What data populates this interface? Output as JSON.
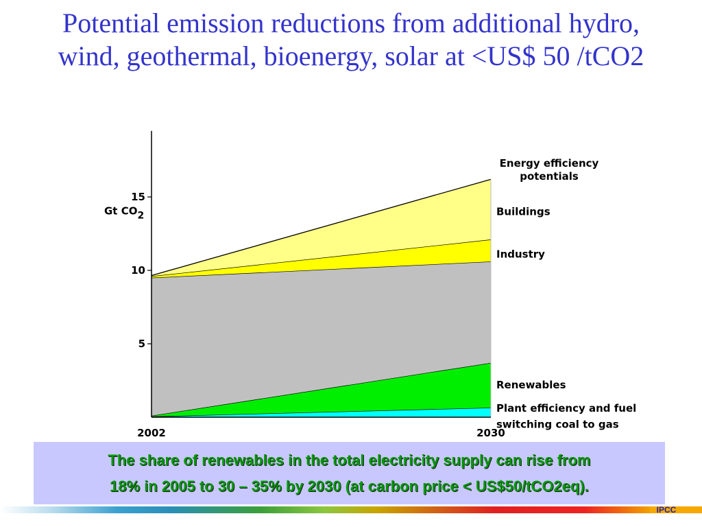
{
  "title": {
    "line1": "Potential emission reductions from additional hydro,",
    "line2": "wind, geothermal, bioenergy, solar at <US$ 50 /tCO2"
  },
  "caption": {
    "line1": "The share of renewables in the total electricity supply can rise from",
    "line2": "18% in 2005 to 30 – 35% by 2030 (at carbon price < US$50/tCO2eq)."
  },
  "footer": {
    "label": "IPCC"
  },
  "chart_data": {
    "type": "area",
    "x": [
      2002,
      2030
    ],
    "x_tick_labels": [
      "2002",
      "2030"
    ],
    "ylabel": "Gt CO",
    "ylabel_sub": "2",
    "ylim": [
      0,
      19.5
    ],
    "y_ticks": [
      5,
      10,
      15
    ],
    "stacked_areas": [
      {
        "name": "Plant efficiency and fuel switching coal to gas",
        "bottom": [
          0,
          0
        ],
        "top": [
          0.05,
          0.65
        ],
        "color": "#00ffff"
      },
      {
        "name": "Renewables",
        "bottom": [
          0.05,
          0.65
        ],
        "top": [
          0.1,
          3.7
        ],
        "color": "#00ee00"
      },
      {
        "name": "",
        "bottom": [
          0.1,
          3.7
        ],
        "top": [
          9.5,
          10.6
        ],
        "color": "#c0c0c0"
      },
      {
        "name": "Industry",
        "bottom": [
          9.5,
          10.6
        ],
        "top": [
          9.6,
          12.1
        ],
        "color": "#ffff00"
      },
      {
        "name": "Buildings",
        "bottom": [
          9.6,
          12.1
        ],
        "top": [
          9.65,
          16.2
        ],
        "color": "#ffff88"
      }
    ],
    "right_labels": [
      {
        "lines": [
          "Energy efficiency",
          "potentials"
        ],
        "y": [
          17.3,
          16.4
        ],
        "anchor": "middle"
      },
      {
        "lines": [
          "Buildings"
        ],
        "y": [
          14.0
        ],
        "anchor": "start"
      },
      {
        "lines": [
          "Industry"
        ],
        "y": [
          11.1
        ],
        "anchor": "start"
      },
      {
        "lines": [
          "Renewables"
        ],
        "y": [
          2.2
        ],
        "anchor": "start"
      },
      {
        "lines": [
          "Plant efficiency and fuel",
          "switching coal to gas"
        ],
        "y": [
          0.6,
          -0.5
        ],
        "anchor": "start"
      }
    ],
    "grid": false
  }
}
